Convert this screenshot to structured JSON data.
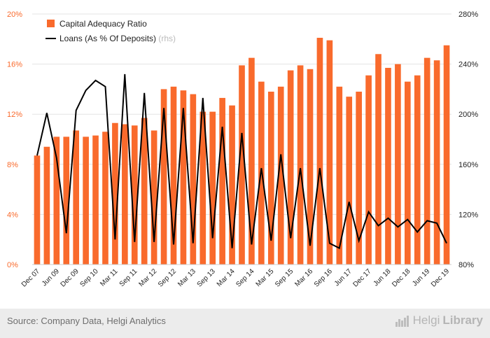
{
  "colors": {
    "bar": "#f96a2c",
    "line": "#000000",
    "axis_text": "#f96a2c",
    "right_axis_text": "#222222",
    "grid": "#e3e3e3",
    "footer_bg": "#ececec",
    "source_text": "#6e6e6e",
    "brand_text": "#b5b5b5",
    "rhs_note": "#bbbbbb"
  },
  "footer": {
    "source": "Source: Company Data, Helgi Analytics",
    "brand_name_1": "Helgi",
    "brand_name_2": "Library",
    "brand_icon": "helgi-library-logo-icon"
  },
  "chart_data": {
    "type": "bar",
    "title": "",
    "xlabel": "",
    "ylabel": "",
    "grid": true,
    "legend_position": "top-left",
    "ylim": [
      0,
      20
    ],
    "y2lim": [
      80,
      280
    ],
    "y_ticks": [
      "0%",
      "4%",
      "8%",
      "12%",
      "16%",
      "20%"
    ],
    "y2_ticks": [
      "80%",
      "120%",
      "160%",
      "200%",
      "240%",
      "280%"
    ],
    "x_ticks": [
      "Dec 07",
      "Jun 09",
      "Dec 09",
      "Sep 10",
      "Mar 11",
      "Sep 11",
      "Mar 12",
      "Sep 12",
      "Mar 13",
      "Sep 13",
      "Mar 14",
      "Sep 14",
      "Mar 15",
      "Sep 15",
      "Mar 16",
      "Sep 16",
      "Jun 17",
      "Dec 17",
      "Jun 18",
      "Dec 18",
      "Jun 19",
      "Dec 19"
    ],
    "series": [
      {
        "name": "Capital Adequacy Ratio",
        "axis": "left",
        "type": "bar",
        "values": [
          8.7,
          9.4,
          10.2,
          10.2,
          10.7,
          10.2,
          10.3,
          10.6,
          11.3,
          11.2,
          11.1,
          11.7,
          10.7,
          14.0,
          14.2,
          13.9,
          13.6,
          12.2,
          12.2,
          13.3,
          12.7,
          15.9,
          16.5,
          14.6,
          13.8,
          14.2,
          15.5,
          15.9,
          15.6,
          18.1,
          17.9,
          14.2,
          13.4,
          13.8,
          15.1,
          16.8,
          15.7,
          16.0,
          14.6,
          15.1,
          16.5,
          16.3,
          17.5
        ]
      },
      {
        "name": "Loans (As % Of Deposits)",
        "legend_note": "(rhs)",
        "axis": "right",
        "type": "line",
        "values": [
          167,
          201,
          165,
          105,
          203,
          219,
          227,
          222,
          100,
          232,
          98,
          217,
          98,
          205,
          96,
          205,
          97,
          213,
          101,
          190,
          93,
          185,
          96,
          157,
          99,
          168,
          101,
          157,
          95,
          157,
          97,
          93,
          130,
          99,
          122,
          111,
          117,
          110,
          116,
          106,
          115,
          113,
          97
        ]
      }
    ]
  }
}
